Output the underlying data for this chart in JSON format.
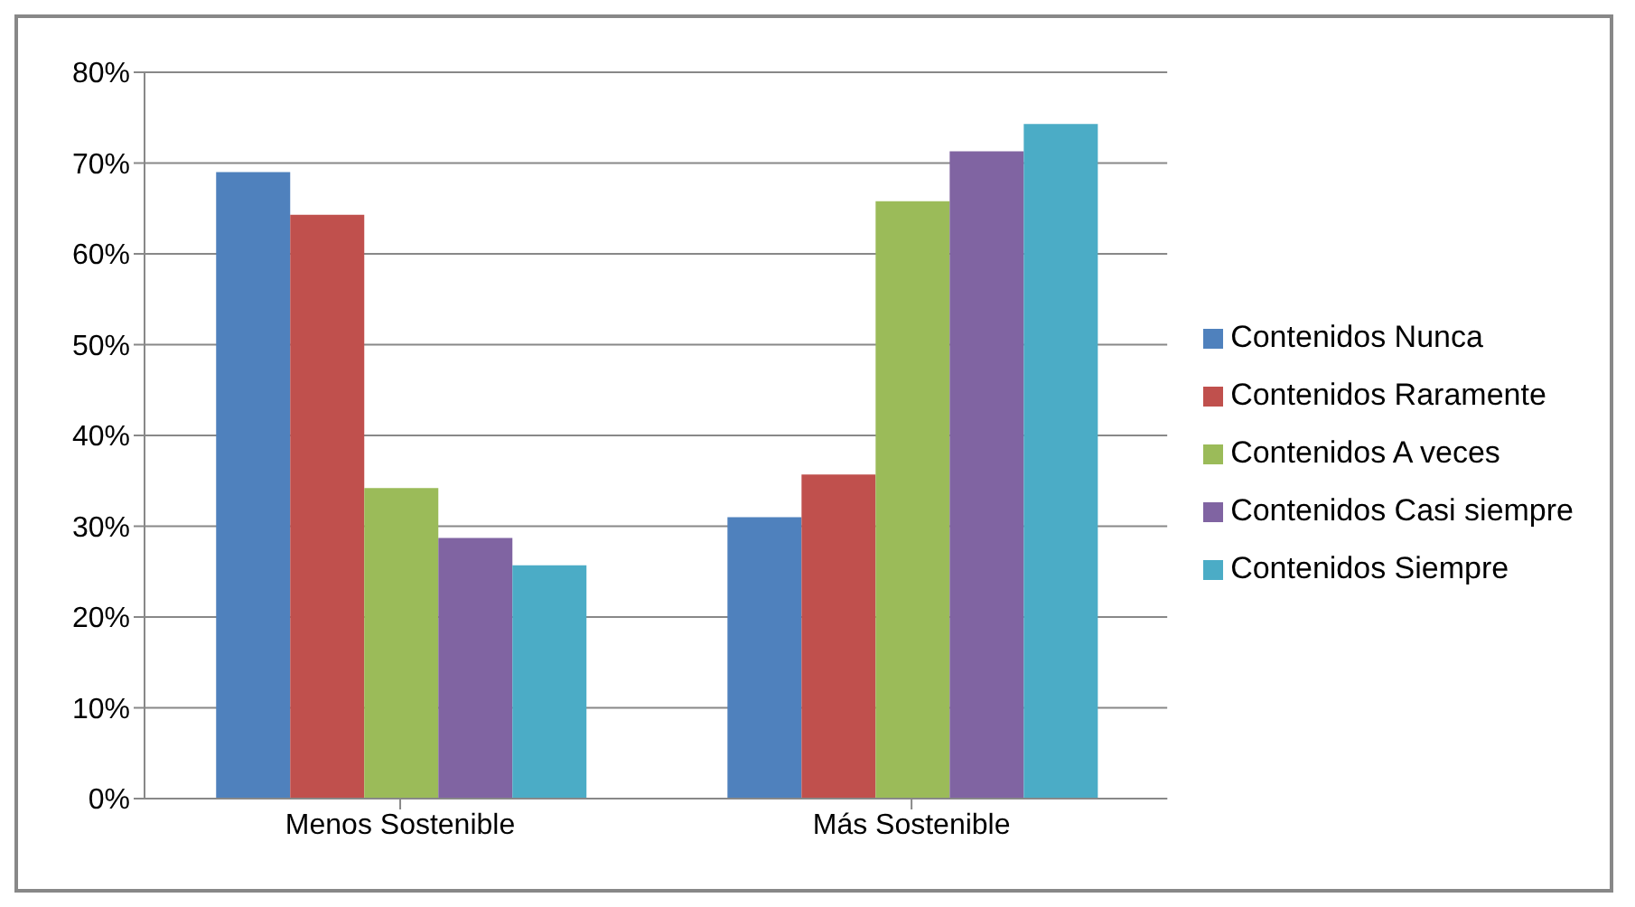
{
  "chart_data": {
    "type": "bar",
    "categories": [
      "Menos Sostenible",
      "Más Sostenible"
    ],
    "series": [
      {
        "name": "Contenidos Nunca",
        "color": "#4f81bd",
        "values": [
          69,
          31
        ]
      },
      {
        "name": "Contenidos Raramente",
        "color": "#c0504d",
        "values": [
          64.3,
          35.7
        ]
      },
      {
        "name": "Contenidos A veces",
        "color": "#9bbb59",
        "values": [
          34.2,
          65.8
        ]
      },
      {
        "name": "Contenidos Casi siempre",
        "color": "#8064a2",
        "values": [
          28.7,
          71.3
        ]
      },
      {
        "name": "Contenidos Siempre",
        "color": "#4bacc6",
        "values": [
          25.7,
          74.3
        ]
      }
    ],
    "ylim": [
      0,
      80
    ],
    "yticks": [
      {
        "value": 0,
        "label": "0%"
      },
      {
        "value": 10,
        "label": "10%"
      },
      {
        "value": 20,
        "label": "20%"
      },
      {
        "value": 30,
        "label": "30%"
      },
      {
        "value": 40,
        "label": "40%"
      },
      {
        "value": 50,
        "label": "50%"
      },
      {
        "value": 60,
        "label": "60%"
      },
      {
        "value": 70,
        "label": "70%"
      },
      {
        "value": 80,
        "label": "80%"
      }
    ],
    "grid": "y",
    "legend": "right"
  }
}
